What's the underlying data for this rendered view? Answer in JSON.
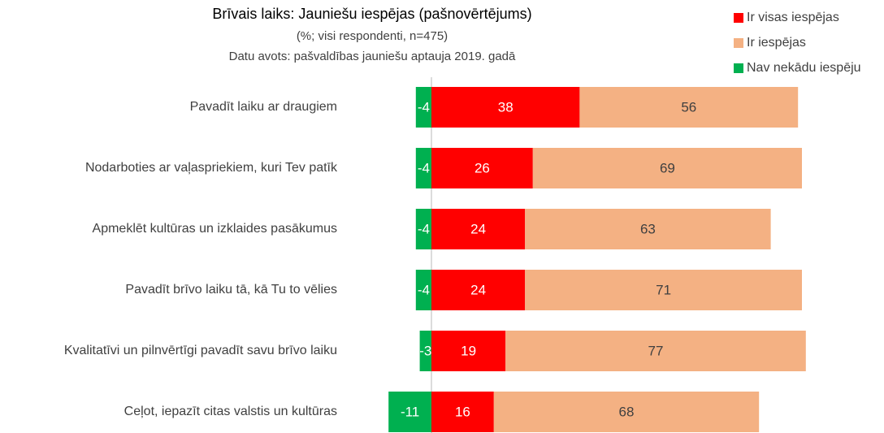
{
  "chart_data": {
    "type": "diverging-bar",
    "title": "Brīvais laiks: Jauniešu iespējas (pašnovērtējums)",
    "subtitle": "(%; visi respondenti, n=475)",
    "source": "Datu avots: pašvaldības jauniešu aptauja 2019. gadā",
    "categories": [
      "Pavadīt laiku ar draugiem",
      "Nodarboties ar vaļaspriekiem, kuri Tev patīk",
      "Apmeklēt kultūras un izklaides pasākumus",
      "Pavadīt brīvo laiku tā, kā Tu to vēlies",
      "Kvalitatīvi un pilnvērtīgi pavadīt savu brīvo laiku",
      "Ceļot, iepazīt citas valstis un kultūras"
    ],
    "series": [
      {
        "name": "Ir visas iespējas",
        "color": "#ff0000",
        "values": [
          38,
          26,
          24,
          24,
          19,
          16
        ]
      },
      {
        "name": "Ir iespējas",
        "color": "#f4b183",
        "values": [
          56,
          69,
          63,
          71,
          77,
          68
        ]
      },
      {
        "name": "Nav nekādu iespēju",
        "color": "#00b050",
        "values": [
          -4,
          -4,
          -4,
          -4,
          -3,
          -11
        ]
      }
    ]
  }
}
